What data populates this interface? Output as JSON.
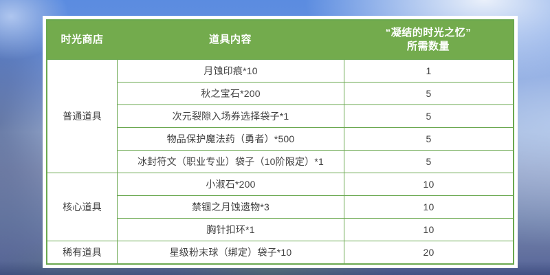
{
  "colors": {
    "header_green": "#73ab4d",
    "border_green": "#6aa84f",
    "header_text": "#ffffff",
    "body_text": "#404040",
    "card_background": "#ffffff",
    "sky_blue_top": "#5b8ce0",
    "slate_blue_bottom": "#556499"
  },
  "table": {
    "col1_header": "时光商店",
    "col2_header": "道具内容",
    "col3_header_line1": "“凝结的时光之忆”",
    "col3_header_line2": "所需数量",
    "groups": [
      {
        "category": "普通道具",
        "items": [
          {
            "name": "月蚀印痕*10",
            "qty": "1"
          },
          {
            "name": "秋之宝石*200",
            "qty": "5"
          },
          {
            "name": "次元裂隙入场券选择袋子*1",
            "qty": "5"
          },
          {
            "name": "物品保护魔法药（勇者）*500",
            "qty": "5"
          },
          {
            "name": "冰封符文（职业专业）袋子（10阶限定）*1",
            "qty": "5"
          }
        ]
      },
      {
        "category": "核心道具",
        "items": [
          {
            "name": "小淑石*200",
            "qty": "10"
          },
          {
            "name": "禁锢之月蚀遗物*3",
            "qty": "10"
          },
          {
            "name": "胸针扣环*1",
            "qty": "10"
          }
        ]
      },
      {
        "category": "稀有道具",
        "items": [
          {
            "name": "星级粉末球（绑定）袋子*10",
            "qty": "20"
          }
        ]
      }
    ]
  }
}
